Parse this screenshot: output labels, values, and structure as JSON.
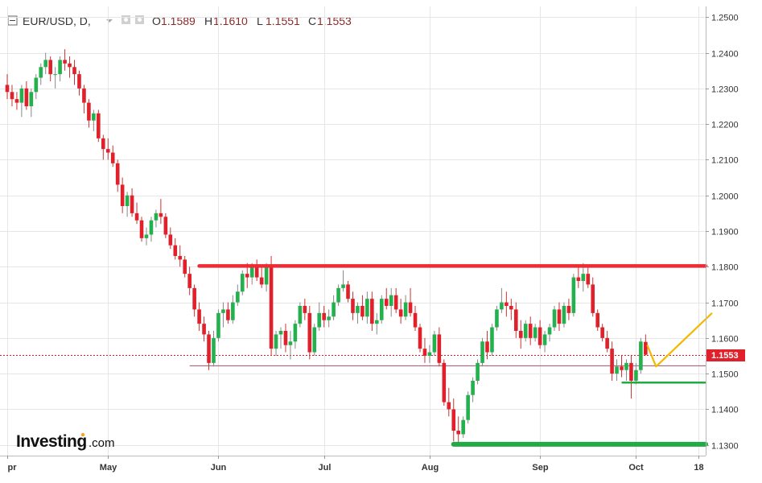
{
  "header": {
    "title": "EUR/USD, D,",
    "open_label": "O",
    "open_value": "1.1589",
    "high_label": "H",
    "high_value": "1.1610",
    "low_label": "L",
    "low_value": "1.1551",
    "close_label": "C",
    "close_value": "1.1553"
  },
  "logo": {
    "main": "Investing",
    "suffix": ".com"
  },
  "colors": {
    "up": "#22b14c",
    "down": "#e0202a",
    "wick_up": "#888888",
    "wick_down": "#cc3333",
    "resistance": "#ee2a35",
    "support": "#22aa44",
    "projection": "#f5b800",
    "price_line": "#cc2222",
    "grid": "#e6e6e6"
  },
  "chart_data": {
    "type": "candlestick",
    "symbol": "EUR/USD",
    "timeframe": "D",
    "ylim": [
      1.127,
      1.253
    ],
    "y_ticks": [
      "1.2500",
      "1.2400",
      "1.2300",
      "1.2200",
      "1.2100",
      "1.2000",
      "1.1900",
      "1.1800",
      "1.1700",
      "1.1600",
      "1.1500",
      "1.1400",
      "1.1300"
    ],
    "x_ticks": [
      {
        "label": "pr",
        "index": 0
      },
      {
        "label": "May",
        "index": 21
      },
      {
        "label": "Jun",
        "index": 44
      },
      {
        "label": "Jul",
        "index": 66
      },
      {
        "label": "Aug",
        "index": 88
      },
      {
        "label": "Sep",
        "index": 111
      },
      {
        "label": "Oct",
        "index": 131
      },
      {
        "label": "18",
        "index": 144
      }
    ],
    "last_price": "1.1553",
    "candles": [
      [
        1.231,
        1.234,
        1.227,
        1.229
      ],
      [
        1.229,
        1.231,
        1.225,
        1.227
      ],
      [
        1.227,
        1.229,
        1.224,
        1.226
      ],
      [
        1.226,
        1.231,
        1.222,
        1.23
      ],
      [
        1.23,
        1.232,
        1.224,
        1.225
      ],
      [
        1.225,
        1.23,
        1.222,
        1.229
      ],
      [
        1.229,
        1.234,
        1.227,
        1.233
      ],
      [
        1.233,
        1.237,
        1.231,
        1.236
      ],
      [
        1.236,
        1.24,
        1.234,
        1.238
      ],
      [
        1.238,
        1.239,
        1.232,
        1.234
      ],
      [
        1.234,
        1.236,
        1.23,
        1.234
      ],
      [
        1.234,
        1.239,
        1.232,
        1.238
      ],
      [
        1.238,
        1.241,
        1.235,
        1.237
      ],
      [
        1.237,
        1.239,
        1.233,
        1.236
      ],
      [
        1.236,
        1.238,
        1.231,
        1.234
      ],
      [
        1.234,
        1.235,
        1.228,
        1.23
      ],
      [
        1.23,
        1.231,
        1.223,
        1.226
      ],
      [
        1.226,
        1.227,
        1.219,
        1.221
      ],
      [
        1.221,
        1.224,
        1.218,
        1.223
      ],
      [
        1.223,
        1.224,
        1.215,
        1.216
      ],
      [
        1.216,
        1.217,
        1.21,
        1.213
      ],
      [
        1.213,
        1.216,
        1.21,
        1.212
      ],
      [
        1.212,
        1.214,
        1.208,
        1.209
      ],
      [
        1.209,
        1.21,
        1.201,
        1.203
      ],
      [
        1.203,
        1.205,
        1.195,
        1.197
      ],
      [
        1.197,
        1.201,
        1.194,
        1.2
      ],
      [
        1.2,
        1.202,
        1.194,
        1.195
      ],
      [
        1.195,
        1.198,
        1.192,
        1.193
      ],
      [
        1.193,
        1.194,
        1.187,
        1.188
      ],
      [
        1.188,
        1.191,
        1.186,
        1.189
      ],
      [
        1.189,
        1.194,
        1.187,
        1.193
      ],
      [
        1.193,
        1.196,
        1.191,
        1.195
      ],
      [
        1.195,
        1.199,
        1.192,
        1.194
      ],
      [
        1.194,
        1.195,
        1.188,
        1.189
      ],
      [
        1.189,
        1.191,
        1.185,
        1.186
      ],
      [
        1.186,
        1.188,
        1.182,
        1.183
      ],
      [
        1.183,
        1.186,
        1.18,
        1.182
      ],
      [
        1.182,
        1.183,
        1.177,
        1.178
      ],
      [
        1.178,
        1.18,
        1.172,
        1.174
      ],
      [
        1.174,
        1.175,
        1.166,
        1.168
      ],
      [
        1.168,
        1.17,
        1.162,
        1.164
      ],
      [
        1.164,
        1.166,
        1.159,
        1.161
      ],
      [
        1.161,
        1.162,
        1.151,
        1.153
      ],
      [
        1.153,
        1.162,
        1.152,
        1.16
      ],
      [
        1.16,
        1.168,
        1.159,
        1.167
      ],
      [
        1.167,
        1.17,
        1.163,
        1.168
      ],
      [
        1.168,
        1.17,
        1.164,
        1.165
      ],
      [
        1.165,
        1.172,
        1.164,
        1.17
      ],
      [
        1.17,
        1.175,
        1.169,
        1.173
      ],
      [
        1.173,
        1.179,
        1.172,
        1.178
      ],
      [
        1.178,
        1.181,
        1.174,
        1.177
      ],
      [
        1.177,
        1.181,
        1.175,
        1.18
      ],
      [
        1.18,
        1.182,
        1.176,
        1.177
      ],
      [
        1.177,
        1.18,
        1.174,
        1.175
      ],
      [
        1.175,
        1.181,
        1.173,
        1.18
      ],
      [
        1.18,
        1.183,
        1.155,
        1.157
      ],
      [
        1.157,
        1.162,
        1.155,
        1.161
      ],
      [
        1.161,
        1.163,
        1.157,
        1.162
      ],
      [
        1.162,
        1.164,
        1.156,
        1.158
      ],
      [
        1.158,
        1.162,
        1.154,
        1.159
      ],
      [
        1.159,
        1.165,
        1.157,
        1.164
      ],
      [
        1.164,
        1.17,
        1.163,
        1.169
      ],
      [
        1.169,
        1.171,
        1.165,
        1.167
      ],
      [
        1.167,
        1.169,
        1.154,
        1.156
      ],
      [
        1.156,
        1.164,
        1.155,
        1.163
      ],
      [
        1.163,
        1.17,
        1.162,
        1.167
      ],
      [
        1.167,
        1.169,
        1.163,
        1.165
      ],
      [
        1.165,
        1.168,
        1.163,
        1.166
      ],
      [
        1.166,
        1.172,
        1.165,
        1.17
      ],
      [
        1.17,
        1.175,
        1.169,
        1.174
      ],
      [
        1.174,
        1.179,
        1.173,
        1.175
      ],
      [
        1.175,
        1.176,
        1.17,
        1.171
      ],
      [
        1.171,
        1.173,
        1.165,
        1.167
      ],
      [
        1.167,
        1.17,
        1.164,
        1.169
      ],
      [
        1.169,
        1.172,
        1.165,
        1.166
      ],
      [
        1.166,
        1.173,
        1.164,
        1.171
      ],
      [
        1.171,
        1.173,
        1.162,
        1.164
      ],
      [
        1.164,
        1.167,
        1.161,
        1.165
      ],
      [
        1.165,
        1.172,
        1.164,
        1.171
      ],
      [
        1.171,
        1.174,
        1.168,
        1.169
      ],
      [
        1.169,
        1.174,
        1.166,
        1.172
      ],
      [
        1.172,
        1.174,
        1.167,
        1.168
      ],
      [
        1.168,
        1.171,
        1.164,
        1.166
      ],
      [
        1.166,
        1.172,
        1.165,
        1.17
      ],
      [
        1.17,
        1.174,
        1.166,
        1.167
      ],
      [
        1.167,
        1.169,
        1.162,
        1.163
      ],
      [
        1.163,
        1.164,
        1.156,
        1.157
      ],
      [
        1.157,
        1.16,
        1.153,
        1.155
      ],
      [
        1.155,
        1.158,
        1.153,
        1.156
      ],
      [
        1.156,
        1.162,
        1.155,
        1.161
      ],
      [
        1.161,
        1.163,
        1.152,
        1.153
      ],
      [
        1.153,
        1.154,
        1.141,
        1.142
      ],
      [
        1.142,
        1.146,
        1.138,
        1.14
      ],
      [
        1.14,
        1.143,
        1.131,
        1.134
      ],
      [
        1.134,
        1.138,
        1.13,
        1.133
      ],
      [
        1.133,
        1.138,
        1.132,
        1.137
      ],
      [
        1.137,
        1.145,
        1.136,
        1.144
      ],
      [
        1.144,
        1.149,
        1.142,
        1.148
      ],
      [
        1.148,
        1.154,
        1.147,
        1.153
      ],
      [
        1.153,
        1.16,
        1.152,
        1.159
      ],
      [
        1.159,
        1.162,
        1.154,
        1.156
      ],
      [
        1.156,
        1.164,
        1.155,
        1.163
      ],
      [
        1.163,
        1.169,
        1.162,
        1.168
      ],
      [
        1.168,
        1.174,
        1.167,
        1.17
      ],
      [
        1.17,
        1.173,
        1.166,
        1.169
      ],
      [
        1.169,
        1.171,
        1.165,
        1.168
      ],
      [
        1.168,
        1.17,
        1.16,
        1.162
      ],
      [
        1.162,
        1.165,
        1.157,
        1.16
      ],
      [
        1.16,
        1.165,
        1.159,
        1.164
      ],
      [
        1.164,
        1.166,
        1.158,
        1.16
      ],
      [
        1.16,
        1.164,
        1.159,
        1.163
      ],
      [
        1.163,
        1.165,
        1.157,
        1.158
      ],
      [
        1.158,
        1.162,
        1.156,
        1.161
      ],
      [
        1.161,
        1.164,
        1.159,
        1.163
      ],
      [
        1.163,
        1.169,
        1.162,
        1.168
      ],
      [
        1.168,
        1.17,
        1.162,
        1.164
      ],
      [
        1.164,
        1.17,
        1.163,
        1.169
      ],
      [
        1.169,
        1.171,
        1.165,
        1.167
      ],
      [
        1.167,
        1.178,
        1.166,
        1.177
      ],
      [
        1.177,
        1.18,
        1.174,
        1.176
      ],
      [
        1.176,
        1.181,
        1.173,
        1.178
      ],
      [
        1.178,
        1.18,
        1.174,
        1.175
      ],
      [
        1.175,
        1.177,
        1.166,
        1.167
      ],
      [
        1.167,
        1.168,
        1.162,
        1.163
      ],
      [
        1.163,
        1.164,
        1.159,
        1.16
      ],
      [
        1.16,
        1.162,
        1.156,
        1.157
      ],
      [
        1.157,
        1.159,
        1.148,
        1.15
      ],
      [
        1.15,
        1.154,
        1.148,
        1.152
      ],
      [
        1.152,
        1.155,
        1.149,
        1.151
      ],
      [
        1.151,
        1.154,
        1.148,
        1.153
      ],
      [
        1.153,
        1.155,
        1.143,
        1.148
      ],
      [
        1.148,
        1.153,
        1.147,
        1.151
      ],
      [
        1.151,
        1.16,
        1.15,
        1.159
      ],
      [
        1.1589,
        1.161,
        1.1551,
        1.1553
      ]
    ]
  }
}
